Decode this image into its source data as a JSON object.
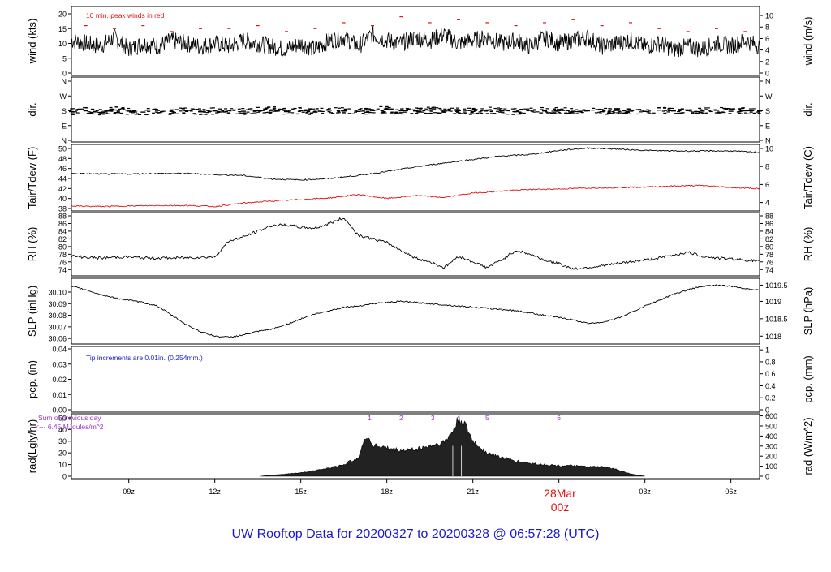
{
  "title": "UW Rooftop Data for 20200327  to  20200328 @ 06:57:28  (UTC)",
  "day_marker": {
    "date": "28Mar",
    "hour": "00z"
  },
  "colors": {
    "primary": "#000000",
    "secondary": "#e01010",
    "note_blue": "#1a1acc",
    "note_purple": "#9933cc",
    "title": "#1a1acc"
  },
  "chart_data": {
    "type": "line",
    "x_axis": {
      "range_hours": [
        7.0,
        31.0
      ],
      "tick_hours": [
        9,
        12,
        15,
        18,
        21,
        24,
        27,
        30
      ],
      "tick_labels": [
        "09z",
        "12z",
        "15z",
        "18z",
        "21z",
        "",
        "03z",
        "06z"
      ]
    },
    "panels": [
      {
        "id": "wind",
        "type": "line",
        "ylabel": "wind (kts)",
        "ylabel_right": "wind (m/s)",
        "ylim": [
          0,
          20
        ],
        "left_ticks": [
          0,
          5,
          10,
          15,
          20
        ],
        "right_ticks": [
          "0",
          "2",
          "4",
          "6",
          "8",
          "10"
        ],
        "right_tick_values": [
          0,
          3.89,
          7.78,
          11.66,
          15.55,
          19.44
        ],
        "note": "10 min. peak winds in red",
        "series": [
          {
            "style": "line",
            "x": [
              7.0,
              7.5,
              8.0,
              8.5,
              9.0,
              9.5,
              10.0,
              10.5,
              11.0,
              11.5,
              12.0,
              12.5,
              13.0,
              13.5,
              14.0,
              14.5,
              15.0,
              15.5,
              16.0,
              16.5,
              17.0,
              17.5,
              18.0,
              18.5,
              19.0,
              19.5,
              20.0,
              20.5,
              21.0,
              21.5,
              22.0,
              22.5,
              23.0,
              23.5,
              24.0,
              24.5,
              25.0,
              25.5,
              26.0,
              26.5,
              27.0,
              27.5,
              28.0,
              28.5,
              29.0,
              29.5,
              30.0,
              30.5,
              31.0
            ],
            "values": [
              11,
              10,
              9,
              12,
              8,
              10,
              9,
              11,
              10,
              9,
              10,
              9,
              11,
              10,
              9,
              8,
              10,
              8,
              11,
              12,
              9,
              13,
              11,
              10,
              12,
              11,
              13,
              10,
              11,
              12,
              10,
              11,
              9,
              12,
              10,
              11,
              12,
              9,
              10,
              11,
              9,
              10,
              8,
              9,
              8,
              10,
              9,
              11,
              9
            ]
          },
          {
            "style": "dash",
            "name": "peak",
            "x": [
              7.5,
              8.5,
              9.5,
              10.5,
              11.5,
              12.5,
              13.5,
              14.5,
              15.5,
              16.5,
              17.5,
              18.5,
              19.5,
              20.5,
              21.5,
              22.5,
              23.5,
              24.5,
              25.5,
              26.5,
              27.5,
              28.5,
              29.5,
              30.5
            ],
            "values": [
              16,
              15,
              16,
              14,
              15,
              15,
              16,
              14,
              15,
              17,
              16,
              19,
              17,
              18,
              17,
              16,
              17,
              18,
              16,
              17,
              15,
              14,
              15,
              14
            ]
          }
        ]
      },
      {
        "id": "dir",
        "type": "scatter",
        "ylabel": "dir.",
        "ylabel_right": "dir.",
        "ylim": [
          0,
          360
        ],
        "tick_labels": [
          "N",
          "E",
          "S",
          "W",
          "N"
        ],
        "tick_values": [
          0,
          90,
          180,
          270,
          360
        ],
        "series": [
          {
            "style": "dash",
            "x": [
              7.0,
              7.5,
              8.0,
              8.5,
              9.0,
              9.5,
              10.0,
              10.5,
              11.0,
              11.5,
              12.0,
              12.5,
              13.0,
              13.5,
              14.0,
              14.5,
              15.0,
              15.5,
              16.0,
              16.5,
              17.0,
              17.5,
              18.0,
              18.5,
              19.0,
              19.5,
              20.0,
              20.5,
              21.0,
              21.5,
              22.0,
              22.5,
              23.0,
              23.5,
              24.0,
              24.5,
              25.0,
              25.5,
              26.0,
              26.5,
              27.0,
              27.5,
              28.0,
              28.5,
              29.0,
              29.5,
              30.0,
              30.5,
              31.0
            ],
            "values": [
              175,
              180,
              170,
              185,
              178,
              172,
              182,
              176,
              180,
              174,
              179,
              183,
              177,
              181,
              186,
              175,
              180,
              172,
              184,
              178,
              176,
              182,
              188,
              180,
              179,
              184,
              178,
              181,
              176,
              182,
              180,
              175,
              183,
              179,
              181,
              177,
              180,
              174,
              182,
              178,
              176,
              184,
              179,
              181,
              178,
              183,
              177,
              180,
              179
            ]
          }
        ]
      },
      {
        "id": "temp",
        "type": "line",
        "ylabel": "Tair/Tdew (F)",
        "ylabel_right": "Tair/Tdew (C)",
        "ylim": [
          38,
          50
        ],
        "left_ticks": [
          38,
          40,
          42,
          44,
          46,
          48,
          50
        ],
        "right_ticks": [
          "4",
          "6",
          "8",
          "10"
        ],
        "right_tick_values": [
          39.2,
          42.8,
          46.4,
          50.0
        ],
        "series": [
          {
            "name": "Tair",
            "x": [
              7.0,
              8.0,
              9.0,
              10.0,
              11.0,
              12.0,
              13.0,
              14.0,
              15.0,
              16.0,
              17.0,
              18.0,
              19.0,
              20.0,
              21.0,
              22.0,
              23.0,
              24.0,
              25.0,
              26.0,
              27.0,
              28.0,
              29.0,
              30.0,
              31.0
            ],
            "values": [
              45.0,
              44.9,
              44.9,
              45.0,
              45.0,
              44.8,
              44.6,
              43.9,
              43.7,
              44.0,
              44.6,
              45.4,
              46.3,
              47.1,
              47.8,
              48.5,
              48.8,
              49.6,
              50.1,
              49.9,
              49.6,
              49.5,
              49.5,
              49.5,
              49.2
            ]
          },
          {
            "name": "Tdew",
            "x": [
              7.0,
              8.0,
              9.0,
              10.0,
              11.0,
              12.0,
              13.0,
              14.0,
              15.0,
              16.0,
              17.0,
              18.0,
              19.0,
              20.0,
              21.0,
              22.0,
              23.0,
              24.0,
              25.0,
              26.0,
              27.0,
              28.0,
              29.0,
              30.0,
              31.0
            ],
            "values": [
              38.5,
              38.4,
              38.5,
              38.6,
              38.6,
              38.4,
              39.1,
              39.5,
              39.8,
              40.1,
              40.8,
              40.0,
              40.6,
              40.2,
              41.1,
              41.5,
              41.8,
              41.9,
              42.1,
              42.2,
              42.3,
              42.5,
              42.6,
              42.2,
              42.0
            ]
          }
        ]
      },
      {
        "id": "rh",
        "type": "line",
        "ylabel": "RH (%)",
        "ylabel_right": "RH (%)",
        "ylim": [
          73,
          88
        ],
        "left_ticks": [
          74,
          76,
          78,
          80,
          82,
          84,
          86,
          88
        ],
        "right_ticks": [
          "74",
          "76",
          "78",
          "80",
          "82",
          "84",
          "86",
          "88"
        ],
        "right_tick_values": [
          74,
          76,
          78,
          80,
          82,
          84,
          86,
          88
        ],
        "series": [
          {
            "x": [
              7.0,
              7.5,
              8.0,
              8.5,
              9.0,
              9.5,
              10.0,
              10.5,
              11.0,
              11.5,
              12.0,
              12.5,
              13.0,
              13.5,
              14.0,
              14.5,
              15.0,
              15.5,
              16.0,
              16.5,
              17.0,
              17.5,
              18.0,
              18.5,
              19.0,
              19.5,
              20.0,
              20.5,
              21.0,
              21.5,
              22.0,
              22.5,
              23.0,
              23.5,
              24.0,
              24.5,
              25.0,
              25.5,
              26.0,
              26.5,
              27.0,
              27.5,
              28.0,
              28.5,
              29.0,
              29.5,
              30.0,
              30.5,
              31.0
            ],
            "values": [
              77.5,
              77.2,
              77.0,
              77.2,
              77.3,
              77.0,
              77.0,
              77.0,
              77.1,
              77.2,
              77.3,
              81.5,
              82.5,
              84.0,
              85.5,
              85.6,
              85.0,
              84.8,
              86.0,
              87.5,
              83.0,
              82.0,
              81.0,
              79.0,
              77.0,
              76.0,
              74.5,
              77.5,
              76.0,
              74.5,
              76.5,
              79.0,
              78.0,
              76.5,
              75.5,
              74.2,
              74.5,
              75.0,
              75.5,
              76.0,
              76.5,
              77.0,
              77.8,
              78.5,
              77.5,
              77.0,
              76.8,
              76.5,
              76.2
            ]
          }
        ]
      },
      {
        "id": "slp",
        "type": "line",
        "ylabel": "SLP (inHg)",
        "ylabel_right": "SLP (hPa)",
        "ylim": [
          30.058,
          30.107
        ],
        "left_ticks": [
          30.06,
          30.07,
          30.08,
          30.09,
          30.1
        ],
        "left_tick_labels": [
          "30.06",
          "30.07",
          "30.08",
          "30.09",
          "30.10"
        ],
        "right_ticks": [
          "1018",
          "1018.5",
          "1019",
          "1019.5"
        ],
        "right_tick_values": [
          30.062,
          30.077,
          30.092,
          30.106
        ],
        "series": [
          {
            "x": [
              7.0,
              7.5,
              8.0,
              8.5,
              9.0,
              9.5,
              10.0,
              10.5,
              11.0,
              11.5,
              12.0,
              12.5,
              13.0,
              13.5,
              14.0,
              14.5,
              15.0,
              15.5,
              16.0,
              16.5,
              17.0,
              17.5,
              18.0,
              18.5,
              19.0,
              19.5,
              20.0,
              20.5,
              21.0,
              21.5,
              22.0,
              22.5,
              23.0,
              23.5,
              24.0,
              24.5,
              25.0,
              25.5,
              26.0,
              26.5,
              27.0,
              27.5,
              28.0,
              28.5,
              29.0,
              29.5,
              30.0,
              30.5,
              31.0
            ],
            "values": [
              30.105,
              30.102,
              30.098,
              30.095,
              30.093,
              30.091,
              30.088,
              30.08,
              30.072,
              30.066,
              30.062,
              30.061,
              30.063,
              30.066,
              30.068,
              30.072,
              30.077,
              30.081,
              30.084,
              30.087,
              30.088,
              30.09,
              30.091,
              30.092,
              30.091,
              30.09,
              30.089,
              30.088,
              30.087,
              30.086,
              30.085,
              30.084,
              30.082,
              30.08,
              30.078,
              30.076,
              30.073,
              30.074,
              30.077,
              30.082,
              30.088,
              30.093,
              30.098,
              30.102,
              30.105,
              30.106,
              30.105,
              30.103,
              30.102
            ]
          }
        ]
      },
      {
        "id": "pcp",
        "type": "line",
        "ylabel": "pcp. (in)",
        "ylabel_right": "pcp. (mm)",
        "ylim": [
          0,
          0.04
        ],
        "left_ticks": [
          0.0,
          0.01,
          0.02,
          0.03,
          0.04
        ],
        "left_tick_labels": [
          "0.00",
          "0.01",
          "0.02",
          "0.03",
          "0.04"
        ],
        "right_ticks": [
          "0",
          "0.2",
          "0.4",
          "0.6",
          "0.8",
          "1"
        ],
        "right_tick_values": [
          0.0,
          0.00787,
          0.01575,
          0.02362,
          0.0315,
          0.03937
        ],
        "note": "Tip increments are 0.01in. (0.254mm.)",
        "series": []
      },
      {
        "id": "rad",
        "type": "area",
        "ylabel": "rad(Lgly/hr)",
        "ylabel_right": "rad (W/m^2)",
        "ylim": [
          0,
          52
        ],
        "left_ticks": [
          0,
          10,
          20,
          30,
          40,
          50
        ],
        "right_ticks": [
          "0",
          "100",
          "200",
          "300",
          "400",
          "500",
          "600"
        ],
        "right_tick_values": [
          0,
          8.6,
          17.2,
          25.8,
          34.4,
          43.0,
          51.6
        ],
        "note_lines": [
          "Sum of previous day",
          "<--- 6.45 MJoules/m^2"
        ],
        "markers": [
          {
            "label": "1",
            "x": 17.4
          },
          {
            "label": "2",
            "x": 18.5
          },
          {
            "label": "3",
            "x": 19.6
          },
          {
            "label": "4",
            "x": 20.5
          },
          {
            "label": "5",
            "x": 21.5
          },
          {
            "label": "6",
            "x": 24.0
          }
        ],
        "series": [
          {
            "x": [
              13.6,
              14.0,
              14.5,
              15.0,
              15.5,
              16.0,
              16.5,
              17.0,
              17.3,
              17.5,
              18.0,
              18.5,
              19.0,
              19.5,
              20.0,
              20.3,
              20.5,
              20.7,
              21.0,
              21.5,
              22.0,
              22.5,
              23.0,
              23.5,
              24.0,
              24.5,
              25.0,
              25.5,
              26.0,
              26.5,
              27.0
            ],
            "values": [
              0,
              1,
              2,
              3,
              5,
              7,
              10,
              16,
              35,
              27,
              24,
              22,
              23,
              26,
              29,
              38,
              49,
              45,
              30,
              20,
              16,
              13,
              11,
              10,
              9,
              9,
              8,
              8,
              6,
              2,
              0
            ]
          }
        ]
      }
    ]
  }
}
